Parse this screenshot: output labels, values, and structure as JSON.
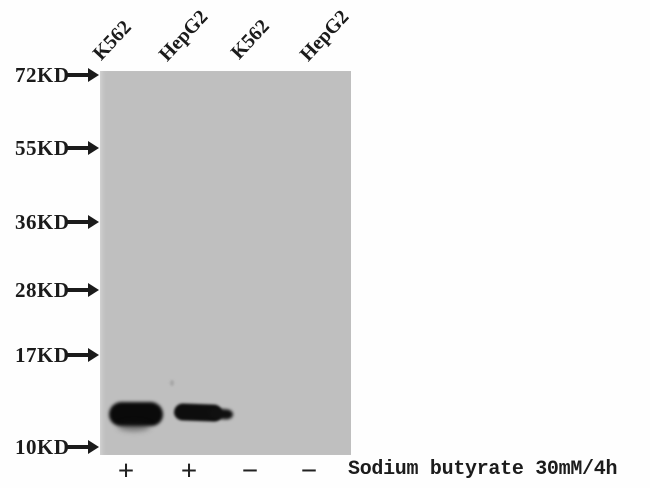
{
  "figure": {
    "type": "western-blot",
    "treatment_label": "Sodium butyrate 30mM/4h"
  },
  "colors": {
    "background": "#fefefe",
    "membrane": "#bfbfbf",
    "band": "#0a0a0a",
    "text": "#1b1b1b"
  },
  "markers": [
    {
      "label": "72KD"
    },
    {
      "label": "55KD"
    },
    {
      "label": "36KD"
    },
    {
      "label": "28KD"
    },
    {
      "label": "17KD"
    },
    {
      "label": "10KD"
    }
  ],
  "lanes": [
    {
      "label": "K562",
      "treatment": "+",
      "band": "strong"
    },
    {
      "label": "HepG2",
      "treatment": "+",
      "band": "medium"
    },
    {
      "label": "K562",
      "treatment": "−",
      "band": "none"
    },
    {
      "label": "HepG2",
      "treatment": "−",
      "band": "none"
    }
  ],
  "bands": [
    {
      "lane": "K562 +",
      "approx_kd": "12",
      "intensity": "strong"
    },
    {
      "lane": "HepG2 +",
      "approx_kd": "12",
      "intensity": "medium"
    }
  ]
}
